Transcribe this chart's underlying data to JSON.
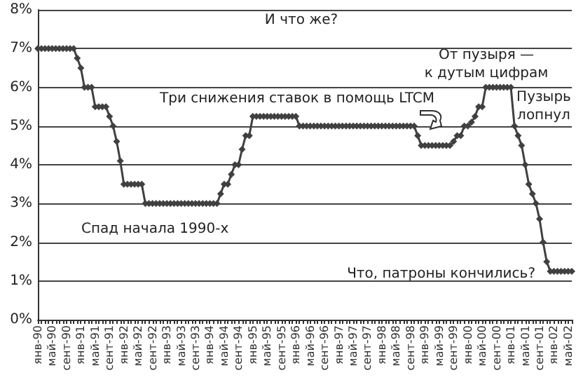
{
  "chart_data": {
    "type": "line",
    "categories": [
      "янв-90",
      null,
      null,
      null,
      "май-90",
      null,
      null,
      null,
      "сент-90",
      null,
      null,
      null,
      "янв-91",
      null,
      null,
      null,
      "май-91",
      null,
      null,
      null,
      "сент-91",
      null,
      null,
      null,
      "янв-92",
      null,
      null,
      null,
      "май-92",
      null,
      null,
      null,
      "сент-92",
      null,
      null,
      null,
      "янв-93",
      null,
      null,
      null,
      "май-93",
      null,
      null,
      null,
      "сент-93",
      null,
      null,
      null,
      "янв-94",
      null,
      null,
      null,
      "май-94",
      null,
      null,
      null,
      "сент-94",
      null,
      null,
      null,
      "янв-95",
      null,
      null,
      null,
      "май-95",
      null,
      null,
      null,
      "сент-95",
      null,
      null,
      null,
      "янв-96",
      null,
      null,
      null,
      "май-96",
      null,
      null,
      null,
      "сент-96",
      null,
      null,
      null,
      "янв-97",
      null,
      null,
      null,
      "май-97",
      null,
      null,
      null,
      "сент-97",
      null,
      null,
      null,
      "янв-98",
      null,
      null,
      null,
      "май-98",
      null,
      null,
      null,
      "сент-98",
      null,
      null,
      null,
      "янв-99",
      null,
      null,
      null,
      "май-99",
      null,
      null,
      null,
      "сент-99",
      null,
      null,
      null,
      "янв-00",
      null,
      null,
      null,
      "май-00",
      null,
      null,
      null,
      "сент-00",
      null,
      null,
      null,
      "янв-01",
      null,
      null,
      null,
      "май-01",
      null,
      null,
      null,
      "сент-01",
      null,
      null,
      null,
      "янв-02",
      null,
      null,
      null,
      "май-02",
      null
    ],
    "series": [
      {
        "color": "#404040",
        "values": [
          7,
          7,
          7,
          7,
          7,
          7,
          7,
          7,
          7,
          7,
          7,
          6.75,
          6.5,
          6,
          6,
          6,
          5.5,
          5.5,
          5.5,
          5.5,
          5.25,
          5,
          4.6,
          4.1,
          3.5,
          3.5,
          3.5,
          3.5,
          3.5,
          3.5,
          3,
          3,
          3,
          3,
          3,
          3,
          3,
          3,
          3,
          3,
          3,
          3,
          3,
          3,
          3,
          3,
          3,
          3,
          3,
          3,
          3,
          3.25,
          3.5,
          3.5,
          3.75,
          4,
          4,
          4.4,
          4.75,
          4.75,
          5.25,
          5.25,
          5.25,
          5.25,
          5.25,
          5.25,
          5.25,
          5.25,
          5.25,
          5.25,
          5.25,
          5.25,
          5.25,
          5,
          5,
          5,
          5,
          5,
          5,
          5,
          5,
          5,
          5,
          5,
          5,
          5,
          5,
          5,
          5,
          5,
          5,
          5,
          5,
          5,
          5,
          5,
          5,
          5,
          5,
          5,
          5,
          5,
          5,
          5,
          5,
          5,
          4.75,
          4.5,
          4.5,
          4.5,
          4.5,
          4.5,
          4.5,
          4.5,
          4.5,
          4.5,
          4.6,
          4.75,
          4.75,
          5,
          5,
          5.1,
          5.25,
          5.5,
          5.5,
          6,
          6,
          6,
          6,
          6,
          6,
          6,
          6,
          5,
          4.75,
          4.5,
          4,
          3.5,
          3.25,
          3,
          2.6,
          2,
          1.5,
          1.25,
          1.25,
          1.25,
          1.25,
          1.25,
          1.25,
          1.25
        ]
      }
    ],
    "ylim": [
      0,
      8
    ],
    "yticks": [
      {
        "value": 0,
        "label": "0%"
      },
      {
        "value": 1,
        "label": "1%"
      },
      {
        "value": 2,
        "label": "2%"
      },
      {
        "value": 3,
        "label": "3%"
      },
      {
        "value": 4,
        "label": "4%"
      },
      {
        "value": 5,
        "label": "5%"
      },
      {
        "value": 6,
        "label": "6%"
      },
      {
        "value": 7,
        "label": "7%"
      },
      {
        "value": 8,
        "label": "8%"
      }
    ],
    "grid": "y",
    "marker": "diamond",
    "line_style": "solid",
    "annotations": [
      "И что же?",
      "Три снижения ставок в помощь LTCM",
      "От пузыря —\nк дутым цифрам",
      "Пузырь\nлопнул",
      "Спад начала 1990-х",
      "Что, патроны кончились?"
    ]
  }
}
